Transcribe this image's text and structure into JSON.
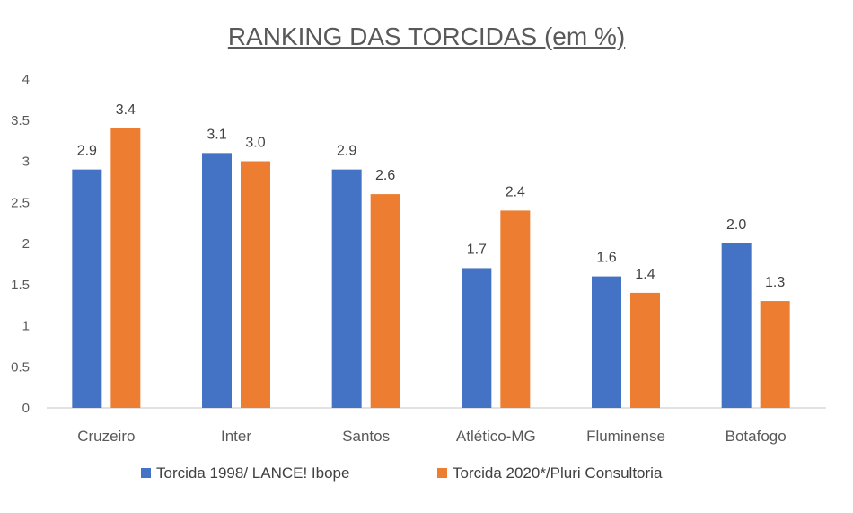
{
  "colors": {
    "series_1": "#4472C4",
    "series_2": "#ED7D31",
    "axis": "#D9D9D9",
    "text": "#595959"
  },
  "chart_data": {
    "type": "bar",
    "title": "RANKING DAS TORCIDAS (em %)",
    "xlabel": "",
    "ylabel": "",
    "ylim": [
      0,
      4
    ],
    "yticks": [
      "0",
      "0.5",
      "1",
      "1.5",
      "2",
      "2.5",
      "3",
      "3.5",
      "4"
    ],
    "grid": false,
    "legend_position": "bottom",
    "categories": [
      "Cruzeiro",
      "Inter",
      "Santos",
      "Atlético-MG",
      "Fluminense",
      "Botafogo"
    ],
    "series": [
      {
        "name": "Torcida 1998/ LANCE! Ibope",
        "values": [
          2.9,
          3.1,
          2.9,
          1.7,
          1.6,
          2.0
        ],
        "labels": [
          "2.9",
          "3.1",
          "2.9",
          "1.7",
          "1.6",
          "2.0"
        ]
      },
      {
        "name": "Torcida 2020*/Pluri Consultoria",
        "values": [
          3.4,
          3.0,
          2.6,
          2.4,
          1.4,
          1.3
        ],
        "labels": [
          "3.4",
          "3.0",
          "2.6",
          "2.4",
          "1.4",
          "1.3"
        ]
      }
    ]
  }
}
